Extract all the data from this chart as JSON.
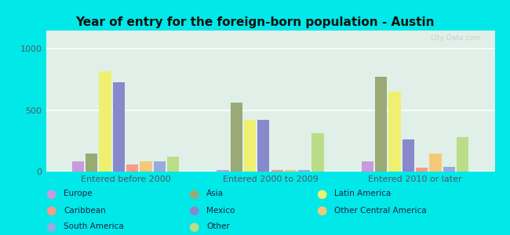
{
  "title": "Year of entry for the foreign-born population - Austin",
  "groups": [
    "Entered before 2000",
    "Entered 2000 to 2009",
    "Entered 2010 or later"
  ],
  "categories": [
    "Europe",
    "Asia",
    "Latin America",
    "Mexico",
    "Caribbean",
    "Other Central America",
    "South America",
    "Other"
  ],
  "colors": [
    "#cc99dd",
    "#99aa77",
    "#f0f070",
    "#8888cc",
    "#ff9988",
    "#f5c878",
    "#99aadd",
    "#bbdd88"
  ],
  "values": {
    "Entered before 2000": [
      80,
      150,
      820,
      730,
      60,
      80,
      80,
      120
    ],
    "Entered 2000 to 2009": [
      15,
      560,
      420,
      420,
      15,
      15,
      15,
      310
    ],
    "Entered 2010 or later": [
      80,
      770,
      650,
      260,
      30,
      150,
      40,
      280
    ]
  },
  "ylim": [
    0,
    1150
  ],
  "yticks": [
    0,
    500,
    1000
  ],
  "bg_color": "#00e8e8",
  "watermark": "© City-Data.com",
  "legend_cols": [
    [
      "Europe",
      "Caribbean",
      "South America"
    ],
    [
      "Asia",
      "Mexico",
      "Other"
    ],
    [
      "Latin America",
      "Other Central America"
    ]
  ],
  "legend_colors": {
    "Europe": "#cc99dd",
    "Asia": "#99aa77",
    "Latin America": "#f0f070",
    "Mexico": "#8888cc",
    "Caribbean": "#ff9988",
    "Other Central America": "#f5c878",
    "South America": "#99aadd",
    "Other": "#bbdd88"
  }
}
